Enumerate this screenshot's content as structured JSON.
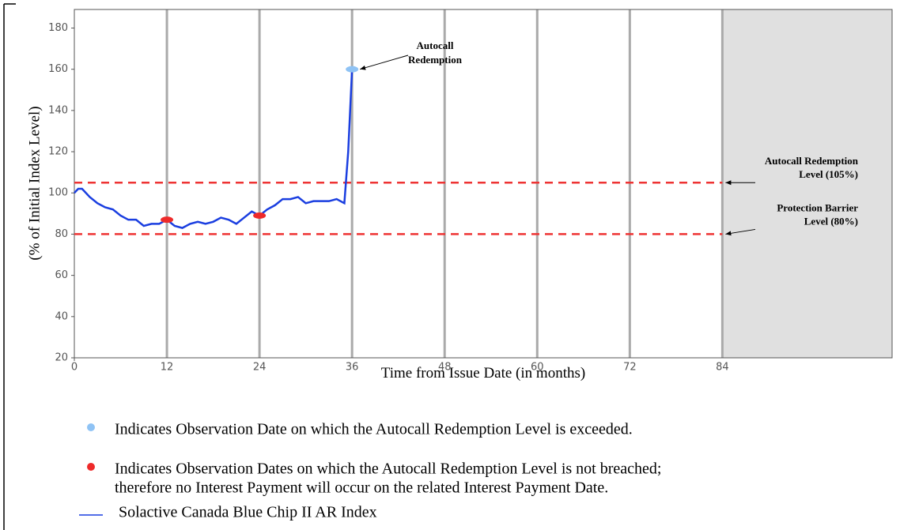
{
  "chart_data": {
    "type": "line",
    "xlabel": "Time from Issue Date (in months)",
    "ylabel": "(% of Initial Index Level)",
    "xlim": [
      0,
      106
    ],
    "ylim": [
      20,
      189
    ],
    "xticks": [
      0,
      12,
      24,
      36,
      48,
      60,
      72,
      84
    ],
    "yticks": [
      20,
      40,
      60,
      80,
      100,
      120,
      140,
      160,
      180
    ],
    "grid": true,
    "shade_from": 84,
    "x": [
      0,
      0.5,
      1,
      2,
      3,
      4,
      5,
      6,
      7,
      8,
      9,
      10,
      11,
      12,
      13,
      14,
      15,
      16,
      17,
      18,
      19,
      20,
      21,
      22,
      23,
      24,
      25,
      26,
      27,
      28,
      29,
      30,
      31,
      32,
      33,
      34,
      35,
      35.5,
      36
    ],
    "series": [
      {
        "name": "Solactive Canada Blue Chip II AR Index",
        "color": "#1a3ee0",
        "values": [
          100,
          102,
          102,
          98,
          95,
          93,
          92,
          89,
          87,
          87,
          84,
          85,
          85,
          87,
          84,
          83,
          85,
          86,
          85,
          86,
          88,
          87,
          85,
          88,
          91,
          89,
          92,
          94,
          97,
          97,
          98,
          95,
          96,
          96,
          96,
          97,
          95,
          120,
          160
        ]
      }
    ],
    "markers": [
      {
        "name": [
          "Indicates Observation Date on which the Autocall Redemption Level is exceeded."
        ],
        "color": "#8fc3f5",
        "x": [
          36
        ],
        "values": [
          160
        ]
      },
      {
        "name": [
          "Indicates Observation Dates on which the Autocall Redemption Level is not breached;",
          "therefore no Interest Payment will occur on the related Interest Payment Date."
        ],
        "color": "#ee2a2a",
        "x": [
          12,
          24
        ],
        "values": [
          87,
          89
        ]
      }
    ],
    "hlines": [
      {
        "value": 105,
        "color": "#ee3333",
        "label": [
          "Autocall Redemption",
          "Level (105%)"
        ]
      },
      {
        "value": 80,
        "color": "#ee3333",
        "label": [
          "Protection Barrier",
          "Level (80%)"
        ]
      }
    ],
    "annotation": {
      "text": [
        "Autocall",
        "Redemption"
      ],
      "x": 36,
      "y": 160
    }
  }
}
